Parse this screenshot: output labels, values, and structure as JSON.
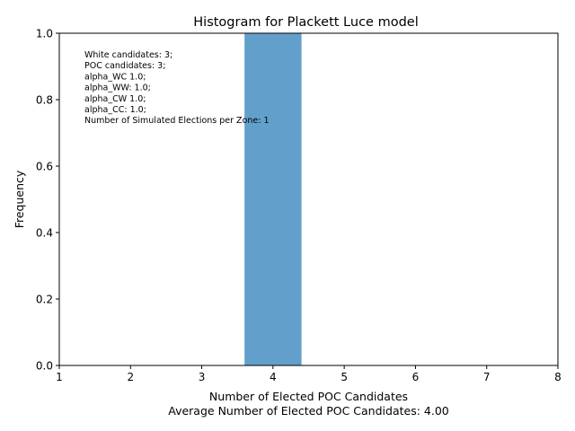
{
  "chart_data": {
    "type": "bar",
    "title": "Histogram for Plackett Luce model",
    "xlabel": "Number of Elected POC Candidates",
    "xlabel_sub": "Average Number of Elected POC Candidates: 4.00",
    "ylabel": "Frequency",
    "xlim": [
      1,
      8
    ],
    "ylim": [
      0,
      1.0
    ],
    "xticks": [
      "1",
      "2",
      "3",
      "4",
      "5",
      "6",
      "7",
      "8"
    ],
    "yticks": [
      "0.0",
      "0.2",
      "0.4",
      "0.6",
      "0.8",
      "1.0"
    ],
    "bars": [
      {
        "x_start": 3.6,
        "x_end": 4.4,
        "value": 1.0
      }
    ],
    "bar_color": "#62a0cb",
    "grid": false,
    "annotation": [
      "White candidates: 3;",
      "POC candidates: 3;",
      "alpha_WC 1.0;",
      "alpha_WW: 1.0;",
      "alpha_CW 1.0;",
      "alpha_CC: 1.0;",
      "Number of Simulated Elections per Zone: 1"
    ]
  }
}
